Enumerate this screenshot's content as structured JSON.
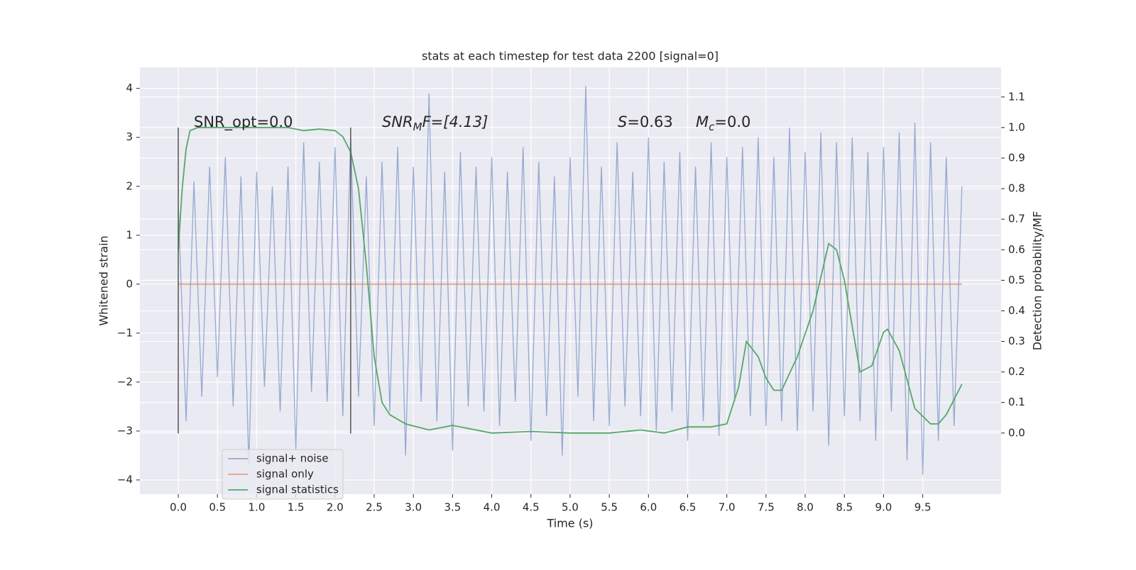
{
  "chart_data": {
    "type": "line",
    "title": "stats at each timestep for test data 2200 [signal=0]",
    "x_label": "Time (s)",
    "y_label": "Whitened strain",
    "y2_label": "Detection probability/MF",
    "xlim": [
      -0.49,
      10.5
    ],
    "ylim": [
      -4.29,
      4.43
    ],
    "y2lim": [
      -0.2,
      1.197
    ],
    "xticks": [
      {
        "value": 0,
        "label": "0.0"
      },
      0.5,
      {
        "value": 1,
        "label": "1.0"
      },
      1.5,
      {
        "value": 2,
        "label": "2.0"
      },
      2.5,
      {
        "value": 3,
        "label": "3.0"
      },
      3.5,
      {
        "value": 4,
        "label": "4.0"
      },
      4.5,
      {
        "value": 5,
        "label": "5.0"
      },
      5.5,
      {
        "value": 6,
        "label": "6.0"
      },
      6.5,
      {
        "value": 7,
        "label": "7.0"
      },
      7.5,
      {
        "value": 8,
        "label": "8.0"
      },
      8.5,
      {
        "value": 9,
        "label": "9.0"
      },
      9.5
    ],
    "yticks": [
      {
        "value": -4,
        "label": "−4"
      },
      {
        "value": -3,
        "label": "−3"
      },
      {
        "value": -2,
        "label": "−2"
      },
      {
        "value": -1,
        "label": "−1"
      },
      0,
      1,
      2,
      3,
      4
    ],
    "y2ticks": [
      {
        "value": 0,
        "label": "0.0"
      },
      0.1,
      0.2,
      0.3,
      0.4,
      0.5,
      0.6,
      0.7,
      0.8,
      0.9,
      {
        "value": 1,
        "label": "1.0"
      },
      1.1
    ],
    "grid": true,
    "legend": "lower left",
    "series": [
      {
        "name": "signal+ noise",
        "color": "#4c72b0",
        "axis": "y",
        "x": [
          0,
          0.1,
          0.2,
          0.3,
          0.4,
          0.5,
          0.6,
          0.7,
          0.8,
          0.9,
          1,
          1.1,
          1.2,
          1.3,
          1.4,
          1.5,
          1.6,
          1.7,
          1.8,
          1.9,
          2,
          2.1,
          2.2,
          2.3,
          2.4,
          2.5,
          2.6,
          2.7,
          2.8,
          2.9,
          3,
          3.1,
          3.2,
          3.3,
          3.4,
          3.5,
          3.6,
          3.7,
          3.8,
          3.9,
          4,
          4.1,
          4.2,
          4.3,
          4.4,
          4.5,
          4.6,
          4.7,
          4.8,
          4.9,
          5,
          5.1,
          5.2,
          5.3,
          5.4,
          5.5,
          5.6,
          5.7,
          5.8,
          5.9,
          6,
          6.1,
          6.2,
          6.3,
          6.4,
          6.5,
          6.6,
          6.7,
          6.8,
          6.9,
          7,
          7.1,
          7.2,
          7.3,
          7.4,
          7.5,
          7.6,
          7.7,
          7.8,
          7.9,
          8,
          8.1,
          8.2,
          8.3,
          8.4,
          8.5,
          8.6,
          8.7,
          8.8,
          8.9,
          9,
          9.1,
          9.2,
          9.3,
          9.4,
          9.5,
          9.6,
          9.7,
          9.8,
          9.9,
          10
        ],
        "values": [
          1.6,
          -2.8,
          2.1,
          -2.3,
          2.4,
          -1.9,
          2.6,
          -2.5,
          2.2,
          -3.7,
          2.3,
          -2.1,
          2.0,
          -2.6,
          2.4,
          -3.4,
          2.9,
          -2.2,
          2.5,
          -2.4,
          2.8,
          -2.7,
          3.0,
          -2.3,
          2.2,
          -2.9,
          2.5,
          -2.6,
          2.8,
          -3.5,
          2.4,
          -2.4,
          3.9,
          -2.8,
          2.3,
          -3.4,
          2.7,
          -2.5,
          2.4,
          -2.6,
          2.6,
          -2.9,
          2.3,
          -2.4,
          2.8,
          -3.2,
          2.5,
          -2.7,
          2.2,
          -3.5,
          2.6,
          -2.3,
          4.05,
          -2.8,
          2.4,
          -2.9,
          2.9,
          -2.5,
          2.3,
          -2.7,
          3.0,
          -3.0,
          2.5,
          -2.6,
          2.7,
          -3.2,
          2.4,
          -2.8,
          2.9,
          -3.1,
          2.6,
          -2.4,
          2.8,
          -2.7,
          3.0,
          -2.9,
          2.6,
          -2.8,
          3.2,
          -3.0,
          2.7,
          -2.6,
          3.1,
          -3.3,
          2.9,
          -2.7,
          3.0,
          -2.8,
          2.7,
          -3.2,
          2.8,
          -2.6,
          3.1,
          -3.6,
          3.3,
          -3.9,
          2.9,
          -3.2,
          2.6,
          -2.9,
          2.0
        ]
      },
      {
        "name": "signal only",
        "color": "#dd8452",
        "axis": "y",
        "x": [
          0,
          10
        ],
        "values": [
          0,
          0
        ]
      },
      {
        "name": "signal statistics",
        "color": "#55a868",
        "axis": "y2",
        "x": [
          0,
          0.05,
          0.1,
          0.15,
          0.25,
          1.0,
          1.4,
          1.6,
          1.8,
          2.0,
          2.1,
          2.2,
          2.3,
          2.4,
          2.5,
          2.6,
          2.7,
          2.9,
          3.2,
          3.5,
          4.0,
          4.5,
          5.0,
          5.5,
          5.9,
          6.2,
          6.5,
          6.8,
          7.0,
          7.15,
          7.25,
          7.4,
          7.5,
          7.6,
          7.7,
          7.9,
          8.1,
          8.3,
          8.4,
          8.5,
          8.7,
          8.85,
          9.0,
          9.05,
          9.2,
          9.4,
          9.6,
          9.7,
          9.8,
          10.0
        ],
        "values": [
          0.6,
          0.8,
          0.93,
          0.99,
          1.0,
          1.0,
          1.0,
          0.99,
          0.995,
          0.99,
          0.97,
          0.92,
          0.8,
          0.55,
          0.25,
          0.1,
          0.06,
          0.03,
          0.01,
          0.025,
          0.0,
          0.005,
          0.0,
          0.0,
          0.01,
          0.0,
          0.02,
          0.02,
          0.03,
          0.15,
          0.3,
          0.25,
          0.18,
          0.14,
          0.14,
          0.25,
          0.4,
          0.62,
          0.6,
          0.5,
          0.2,
          0.22,
          0.33,
          0.34,
          0.27,
          0.08,
          0.03,
          0.03,
          0.06,
          0.16
        ]
      }
    ],
    "vlines": [
      {
        "x": 0,
        "ymin": -3.05,
        "ymax": 3.2,
        "color": "#555555"
      },
      {
        "x": 2.2,
        "ymin": -3.05,
        "ymax": 3.2,
        "color": "#555555"
      }
    ],
    "annotations": [
      {
        "parts": [
          "SNR_opt=0.0"
        ]
      },
      {
        "parts": [
          "SNR",
          "M",
          "F=[4.13]"
        ]
      },
      {
        "parts": [
          "S",
          "=0.63"
        ]
      },
      {
        "parts": [
          "M",
          "c",
          "=0.0"
        ]
      }
    ]
  }
}
